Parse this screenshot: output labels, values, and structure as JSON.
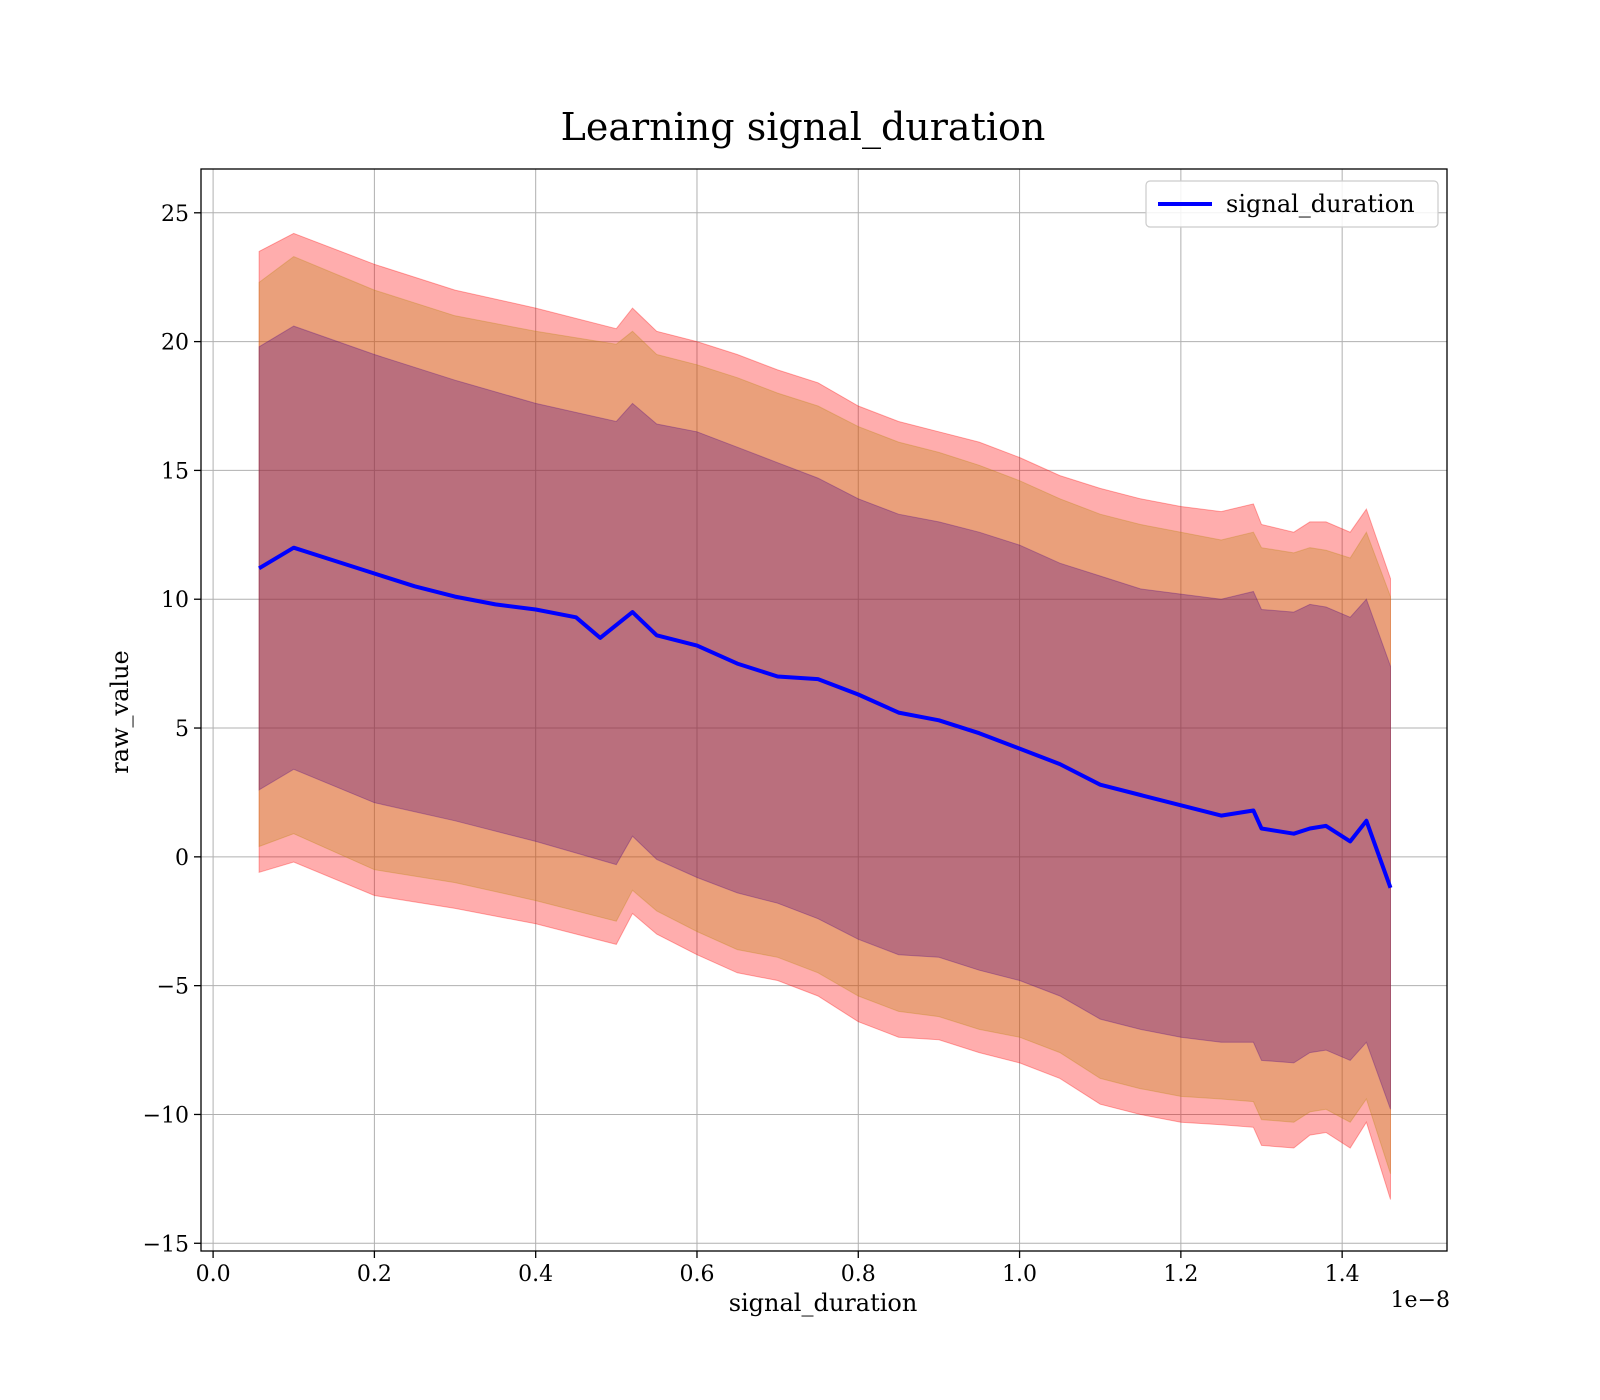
{
  "chart_data": {
    "type": "line",
    "title": "Learning signal_duration",
    "xlabel": "signal_duration",
    "ylabel": "raw_value",
    "x_offset_label": "1e−8",
    "xlim": [
      -0.015,
      1.53
    ],
    "ylim": [
      -15.3,
      26.7
    ],
    "x_ticks": [
      0.0,
      0.2,
      0.4,
      0.6,
      0.8,
      1.0,
      1.2,
      1.4
    ],
    "x_tick_labels": [
      "0.0",
      "0.2",
      "0.4",
      "0.6",
      "0.8",
      "1.0",
      "1.2",
      "1.4"
    ],
    "y_ticks": [
      -15,
      -10,
      -5,
      0,
      5,
      10,
      15,
      20,
      25
    ],
    "y_tick_labels": [
      "−15",
      "−10",
      "−5",
      "0",
      "5",
      "10",
      "15",
      "20",
      "25"
    ],
    "grid": true,
    "legend_position": "top-right",
    "series": [
      {
        "name": "signal_duration",
        "color": "#0000ff",
        "x": [
          0.057,
          0.1,
          0.15,
          0.2,
          0.25,
          0.3,
          0.35,
          0.4,
          0.45,
          0.48,
          0.52,
          0.55,
          0.6,
          0.65,
          0.7,
          0.75,
          0.8,
          0.85,
          0.9,
          0.95,
          1.0,
          1.05,
          1.1,
          1.15,
          1.2,
          1.25,
          1.29,
          1.3,
          1.34,
          1.36,
          1.38,
          1.41,
          1.43,
          1.46
        ],
        "y": [
          11.2,
          12.0,
          11.5,
          11.0,
          10.5,
          10.1,
          9.8,
          9.6,
          9.3,
          8.5,
          9.5,
          8.6,
          8.2,
          7.5,
          7.0,
          6.9,
          6.3,
          5.6,
          5.3,
          4.8,
          4.2,
          3.6,
          2.8,
          2.4,
          2.0,
          1.6,
          1.8,
          1.1,
          0.9,
          1.1,
          1.2,
          0.6,
          1.4,
          -1.2
        ]
      }
    ],
    "bands": [
      {
        "name": "outer",
        "color": "#ff0000",
        "opacity": 0.32,
        "x": [
          0.057,
          0.1,
          0.2,
          0.3,
          0.4,
          0.5,
          0.52,
          0.55,
          0.6,
          0.65,
          0.7,
          0.75,
          0.8,
          0.85,
          0.9,
          0.95,
          1.0,
          1.05,
          1.1,
          1.15,
          1.2,
          1.25,
          1.29,
          1.3,
          1.34,
          1.36,
          1.38,
          1.41,
          1.43,
          1.46
        ],
        "upper": [
          23.5,
          24.2,
          23.0,
          22.0,
          21.3,
          20.5,
          21.3,
          20.4,
          20.0,
          19.5,
          18.9,
          18.4,
          17.5,
          16.9,
          16.5,
          16.1,
          15.5,
          14.8,
          14.3,
          13.9,
          13.6,
          13.4,
          13.7,
          12.9,
          12.6,
          13.0,
          13.0,
          12.6,
          13.5,
          10.8
        ],
        "lower": [
          -0.6,
          -0.2,
          -1.5,
          -2.0,
          -2.6,
          -3.4,
          -2.2,
          -3.0,
          -3.8,
          -4.5,
          -4.8,
          -5.4,
          -6.4,
          -7.0,
          -7.1,
          -7.6,
          -8.0,
          -8.6,
          -9.6,
          -10.0,
          -10.3,
          -10.4,
          -10.5,
          -11.2,
          -11.3,
          -10.8,
          -10.7,
          -11.3,
          -10.3,
          -13.3
        ]
      },
      {
        "name": "middle",
        "color": "#b8860b",
        "opacity": 0.3,
        "x": [
          0.057,
          0.1,
          0.2,
          0.3,
          0.4,
          0.5,
          0.52,
          0.55,
          0.6,
          0.65,
          0.7,
          0.75,
          0.8,
          0.85,
          0.9,
          0.95,
          1.0,
          1.05,
          1.1,
          1.15,
          1.2,
          1.25,
          1.29,
          1.3,
          1.34,
          1.36,
          1.38,
          1.41,
          1.43,
          1.46
        ],
        "upper": [
          22.3,
          23.3,
          22.0,
          21.0,
          20.4,
          19.9,
          20.4,
          19.5,
          19.1,
          18.6,
          18.0,
          17.5,
          16.7,
          16.1,
          15.7,
          15.2,
          14.6,
          13.9,
          13.3,
          12.9,
          12.6,
          12.3,
          12.6,
          12.0,
          11.8,
          12.0,
          11.9,
          11.6,
          12.6,
          10.1
        ],
        "lower": [
          0.4,
          0.9,
          -0.5,
          -1.0,
          -1.7,
          -2.5,
          -1.3,
          -2.1,
          -2.9,
          -3.6,
          -3.9,
          -4.5,
          -5.4,
          -6.0,
          -6.2,
          -6.7,
          -7.0,
          -7.6,
          -8.6,
          -9.0,
          -9.3,
          -9.4,
          -9.5,
          -10.2,
          -10.3,
          -9.9,
          -9.8,
          -10.3,
          -9.4,
          -12.3
        ]
      },
      {
        "name": "inner",
        "color": "#4b0082",
        "opacity": 0.3,
        "x": [
          0.057,
          0.1,
          0.2,
          0.3,
          0.4,
          0.5,
          0.52,
          0.55,
          0.6,
          0.65,
          0.7,
          0.75,
          0.8,
          0.85,
          0.9,
          0.95,
          1.0,
          1.05,
          1.1,
          1.15,
          1.2,
          1.25,
          1.29,
          1.3,
          1.34,
          1.36,
          1.38,
          1.41,
          1.43,
          1.46
        ],
        "upper": [
          19.8,
          20.6,
          19.5,
          18.5,
          17.6,
          16.9,
          17.6,
          16.8,
          16.5,
          15.9,
          15.3,
          14.7,
          13.9,
          13.3,
          13.0,
          12.6,
          12.1,
          11.4,
          10.9,
          10.4,
          10.2,
          10.0,
          10.3,
          9.6,
          9.5,
          9.8,
          9.7,
          9.3,
          10.0,
          7.4
        ],
        "lower": [
          2.6,
          3.4,
          2.1,
          1.4,
          0.6,
          -0.3,
          0.8,
          -0.1,
          -0.8,
          -1.4,
          -1.8,
          -2.4,
          -3.2,
          -3.8,
          -3.9,
          -4.4,
          -4.8,
          -5.4,
          -6.3,
          -6.7,
          -7.0,
          -7.2,
          -7.2,
          -7.9,
          -8.0,
          -7.6,
          -7.5,
          -7.9,
          -7.2,
          -9.8
        ]
      }
    ]
  }
}
